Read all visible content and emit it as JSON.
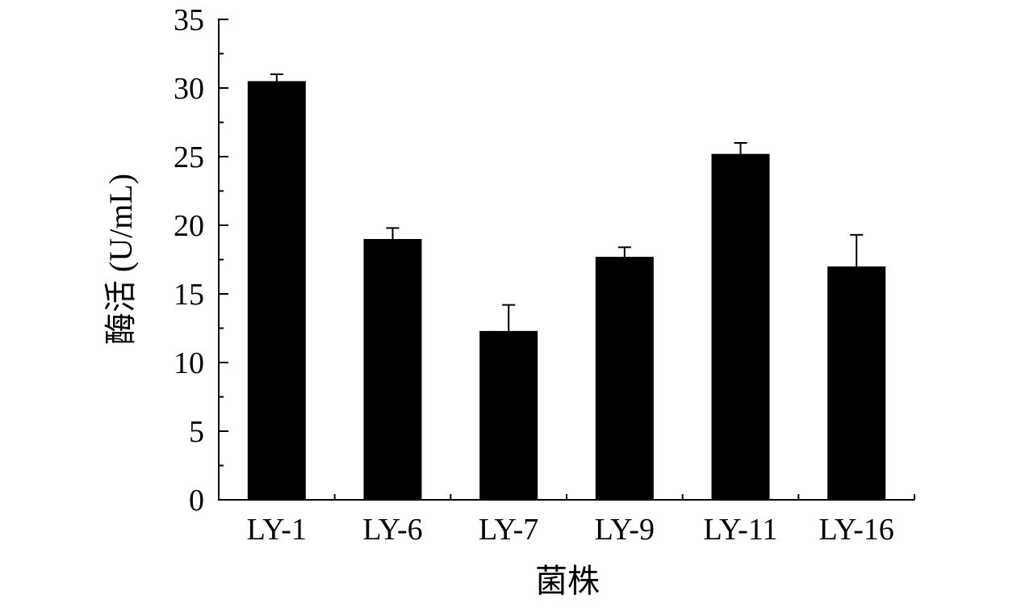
{
  "chart_data": {
    "type": "bar",
    "title": "",
    "xlabel": "菌株",
    "ylabel": "酶活 (U/mL)",
    "categories": [
      "LY-1",
      "LY-6",
      "LY-7",
      "LY-9",
      "LY-11",
      "LY-16"
    ],
    "series": [
      {
        "values": [
          30.5,
          19.0,
          12.3,
          17.7,
          25.2,
          17.0
        ],
        "error": [
          0.5,
          0.8,
          1.9,
          0.7,
          0.8,
          2.3
        ]
      }
    ],
    "ylim": [
      0,
      35
    ],
    "yticks": [
      "0",
      "5",
      "10",
      "15",
      "20",
      "25",
      "30",
      "35"
    ],
    "grid": false,
    "legend": "none",
    "colors": {
      "bar": "#000000",
      "axis": "#000000",
      "background": "#ffffff"
    }
  }
}
